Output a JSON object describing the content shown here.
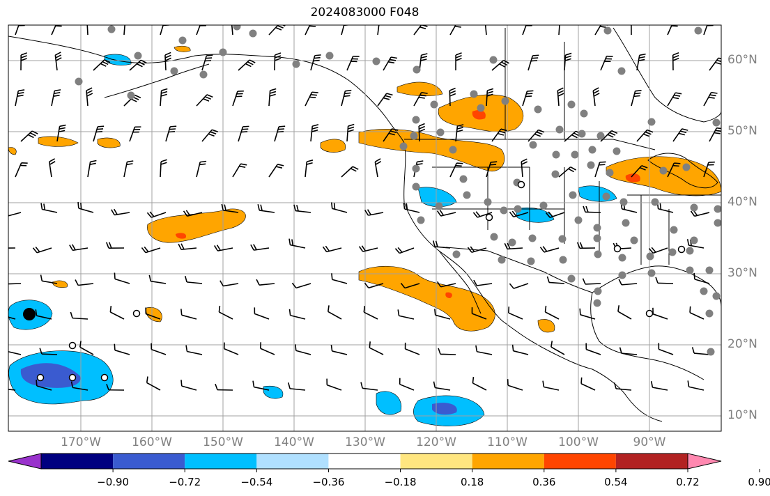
{
  "title": "2024083000 F048",
  "map": {
    "lon_range": [
      -180,
      -80
    ],
    "lat_range": [
      8,
      65
    ],
    "lat_labels": [
      "60°N",
      "50°N",
      "40°N",
      "30°N",
      "20°N",
      "10°N"
    ],
    "lon_labels": [
      "170°W",
      "160°W",
      "150°W",
      "140°W",
      "130°W",
      "120°W",
      "110°W",
      "100°W",
      "90°W"
    ],
    "gridline_color": "#a0a0a0",
    "land_line_color": "#000000",
    "station_color": "#808080"
  },
  "colorbar": {
    "tick_labels": [
      "−0.90",
      "−0.72",
      "−0.54",
      "−0.36",
      "−0.18",
      "0.18",
      "0.36",
      "0.54",
      "0.72",
      "0.90"
    ],
    "colors": [
      "#9932cc",
      "#000080",
      "#3a5bd0",
      "#00bfff",
      "#b0e0ff",
      "#ffffff",
      "#ffe680",
      "#ffa500",
      "#ff4500",
      "#b22222",
      "#ff88b0"
    ]
  }
}
